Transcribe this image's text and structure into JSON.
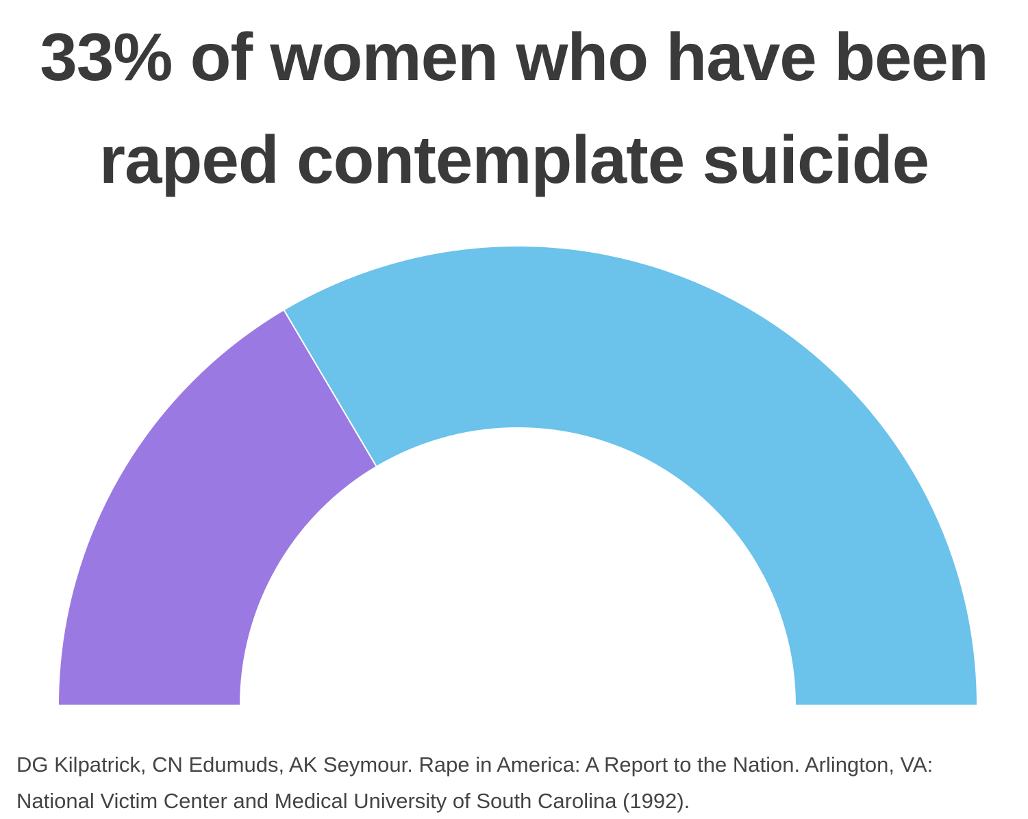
{
  "chart_data": {
    "type": "pie",
    "variant": "semicircle-donut",
    "title": "33% of women who have been raped contemplate suicide",
    "slices": [
      {
        "value": 33,
        "color": "#9b79e2"
      },
      {
        "value": 67,
        "color": "#6bc2ea"
      }
    ],
    "legend": "none",
    "source": "DG Kilpatrick, CN Edumuds, AK Seymour. Rape in America: A Report to the Nation. Arlington, VA: National Victim Center and Medical University of South Carolina (1992)."
  }
}
